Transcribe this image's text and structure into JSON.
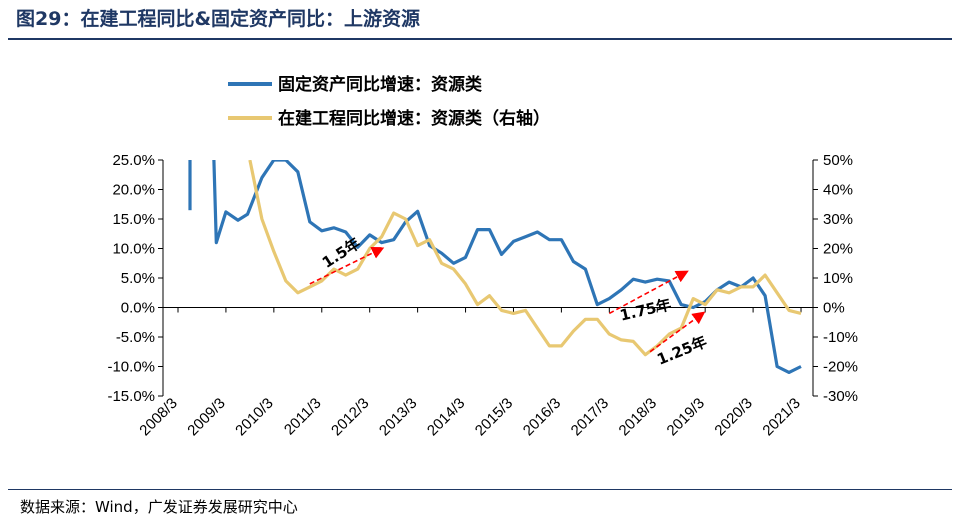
{
  "figure": {
    "title": "图29：在建工程同比&固定资产同比：上游资源",
    "source": "数据来源：Wind，广发证券发展研究中心"
  },
  "colors": {
    "series1": "#2e75b6",
    "series2": "#e8c872",
    "arrow": "#ff0000",
    "title": "#1f3864"
  },
  "chart_data": {
    "type": "line",
    "legend": [
      "固定资产同比增速：资源类",
      "在建工程同比增速：资源类（右轴）"
    ],
    "left_axis": {
      "ylim": [
        -15,
        25
      ],
      "ticks": [
        -15,
        -10,
        -5,
        0,
        5,
        10,
        15,
        20,
        25
      ],
      "tick_labels": [
        "-15.0%",
        "-10.0%",
        "-5.0%",
        "0.0%",
        "5.0%",
        "10.0%",
        "15.0%",
        "20.0%",
        "25.0%"
      ]
    },
    "right_axis": {
      "ylim": [
        -30,
        50
      ],
      "ticks": [
        -30,
        -20,
        -10,
        0,
        10,
        20,
        30,
        40,
        50
      ],
      "tick_labels": [
        "-30%",
        "-20%",
        "-10%",
        "0%",
        "10%",
        "20%",
        "30%",
        "40%",
        "50%"
      ]
    },
    "x_range": [
      2008.0,
      2021.25
    ],
    "x_ticks": [
      2008,
      2009,
      2010,
      2011,
      2012,
      2013,
      2014,
      2015,
      2016,
      2017,
      2018,
      2019,
      2020,
      2021
    ],
    "x_tick_labels": [
      "2008/3",
      "2009/3",
      "2010/3",
      "2011/3",
      "2012/3",
      "2013/3",
      "2014/3",
      "2015/3",
      "2016/3",
      "2017/3",
      "2018/3",
      "2019/3",
      "2020/3",
      "2021/3"
    ],
    "series": [
      {
        "name": "固定资产同比增速：资源类",
        "axis": "left",
        "segments": [
          [
            [
              2008.25,
              16.5
            ],
            [
              2008.25,
              25
            ]
          ],
          [
            [
              2008.75,
              25
            ],
            [
              2008.8,
              11
            ],
            [
              2009.0,
              16.2
            ],
            [
              2009.25,
              14.8
            ],
            [
              2009.45,
              15.8
            ],
            [
              2009.75,
              22
            ],
            [
              2010.0,
              25
            ],
            [
              2010.25,
              25
            ],
            [
              2010.5,
              23
            ],
            [
              2010.75,
              14.5
            ],
            [
              2011.0,
              13
            ],
            [
              2011.25,
              13.5
            ],
            [
              2011.5,
              12.8
            ],
            [
              2011.75,
              10.2
            ],
            [
              2012.0,
              12.3
            ],
            [
              2012.25,
              11
            ],
            [
              2012.5,
              11.5
            ],
            [
              2012.75,
              14.5
            ],
            [
              2013.0,
              16.3
            ],
            [
              2013.25,
              10.5
            ],
            [
              2013.5,
              9.2
            ],
            [
              2013.75,
              7.5
            ],
            [
              2014.0,
              8.5
            ],
            [
              2014.25,
              13.2
            ],
            [
              2014.5,
              13.2
            ],
            [
              2014.75,
              9
            ],
            [
              2015.0,
              11.2
            ],
            [
              2015.25,
              12
            ],
            [
              2015.5,
              12.8
            ],
            [
              2015.75,
              11.5
            ],
            [
              2016.0,
              11.5
            ],
            [
              2016.25,
              7.8
            ],
            [
              2016.5,
              6.5
            ],
            [
              2016.75,
              0.5
            ],
            [
              2017.0,
              1.5
            ],
            [
              2017.25,
              3
            ],
            [
              2017.5,
              4.8
            ],
            [
              2017.75,
              4.3
            ],
            [
              2018.0,
              4.8
            ],
            [
              2018.25,
              4.5
            ],
            [
              2018.5,
              0.5
            ],
            [
              2018.75,
              0
            ],
            [
              2019.0,
              1
            ],
            [
              2019.25,
              3
            ],
            [
              2019.5,
              4.3
            ],
            [
              2019.75,
              3.5
            ],
            [
              2020.0,
              5
            ],
            [
              2020.25,
              2
            ],
            [
              2020.5,
              -10
            ],
            [
              2020.75,
              -11
            ],
            [
              2021.0,
              -10
            ]
          ]
        ]
      },
      {
        "name": "在建工程同比增速：资源类（右轴）",
        "axis": "right",
        "segments": [
          [
            [
              2009.5,
              50
            ],
            [
              2009.75,
              30
            ],
            [
              2010.0,
              19
            ],
            [
              2010.25,
              9
            ],
            [
              2010.5,
              5
            ],
            [
              2010.75,
              7
            ],
            [
              2011.0,
              9
            ],
            [
              2011.25,
              13
            ],
            [
              2011.5,
              11
            ],
            [
              2011.75,
              13
            ],
            [
              2012.0,
              20
            ],
            [
              2012.25,
              24
            ],
            [
              2012.5,
              32
            ],
            [
              2012.75,
              30
            ],
            [
              2013.0,
              21
            ],
            [
              2013.25,
              23
            ],
            [
              2013.5,
              15
            ],
            [
              2013.75,
              13
            ],
            [
              2014.0,
              8
            ],
            [
              2014.25,
              1
            ],
            [
              2014.5,
              4
            ],
            [
              2014.75,
              -1
            ],
            [
              2015.0,
              -2
            ],
            [
              2015.25,
              -1
            ],
            [
              2015.5,
              -7
            ],
            [
              2015.75,
              -13
            ],
            [
              2016.0,
              -13
            ],
            [
              2016.25,
              -8
            ],
            [
              2016.5,
              -4
            ],
            [
              2016.75,
              -4
            ],
            [
              2017.0,
              -9
            ],
            [
              2017.25,
              -11
            ],
            [
              2017.5,
              -11.5
            ],
            [
              2017.75,
              -16
            ],
            [
              2018.0,
              -13
            ],
            [
              2018.25,
              -9
            ],
            [
              2018.5,
              -7
            ],
            [
              2018.75,
              3
            ],
            [
              2019.0,
              1
            ],
            [
              2019.25,
              6
            ],
            [
              2019.5,
              5
            ],
            [
              2019.75,
              7
            ],
            [
              2020.0,
              7
            ],
            [
              2020.25,
              11
            ],
            [
              2020.5,
              5
            ],
            [
              2020.75,
              -1
            ],
            [
              2021.0,
              -2
            ]
          ]
        ]
      }
    ],
    "annotations": [
      {
        "label": "1.5年",
        "from": [
          2010.75,
          8
        ],
        "to": [
          2012.25,
          20
        ],
        "label_at": [
          2011.1,
          13.2
        ],
        "label_angle": -33
      },
      {
        "label": "1.75年",
        "from": [
          2017.0,
          -2
        ],
        "to": [
          2018.6,
          12
        ],
        "label_at": [
          2017.25,
          -4.5
        ],
        "label_angle": -13
      },
      {
        "label": "1.25年",
        "from": [
          2017.85,
          -15
        ],
        "to": [
          2018.95,
          -2
        ],
        "label_at": [
          2018.05,
          -19.5
        ],
        "label_angle": -22
      }
    ]
  }
}
